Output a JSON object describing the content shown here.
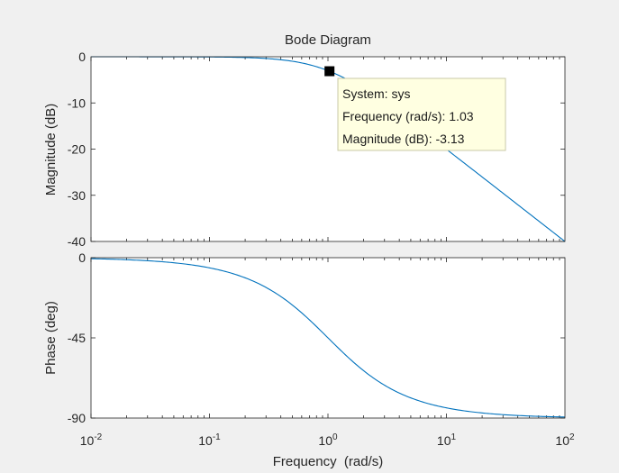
{
  "chart_data": {
    "type": "line",
    "title": "Bode Diagram",
    "xlabel": "Frequency  (rad/s)",
    "x_scale": "log",
    "xlim": [
      0.01,
      100
    ],
    "x_tick_values": [
      0.01,
      0.1,
      1,
      10,
      100
    ],
    "x_tick_labels": [
      {
        "base": "10",
        "exp": "-2"
      },
      {
        "base": "10",
        "exp": "-1"
      },
      {
        "base": "10",
        "exp": "0"
      },
      {
        "base": "10",
        "exp": "1"
      },
      {
        "base": "10",
        "exp": "2"
      }
    ],
    "system": "first-order low-pass, corner 1 rad/s",
    "subplots": [
      {
        "name": "magnitude",
        "ylabel": "Magnitude (dB)",
        "ylim": [
          -40,
          0
        ],
        "y_ticks": [
          0,
          -10,
          -20,
          -30,
          -40
        ],
        "y_tick_labels": [
          "0",
          "-10",
          "-20",
          "-30",
          "-40"
        ],
        "series": [
          {
            "name": "sys",
            "x": [
              0.01,
              0.1,
              0.3,
              0.5,
              1,
              2,
              5,
              10,
              30,
              100
            ],
            "y": [
              0,
              -0.04,
              -0.37,
              -0.97,
              -3.01,
              -6.99,
              -14.15,
              -20.04,
              -29.54,
              -40
            ]
          }
        ]
      },
      {
        "name": "phase",
        "ylabel": "Phase (deg)",
        "ylim": [
          -90,
          0
        ],
        "y_ticks": [
          0,
          -45,
          -90
        ],
        "y_tick_labels": [
          "0",
          "-45",
          "-90"
        ],
        "series": [
          {
            "name": "sys",
            "x": [
              0.01,
              0.1,
              0.3,
              1,
              3,
              10,
              100
            ],
            "y": [
              -0.57,
              -5.71,
              -16.7,
              -45,
              -71.57,
              -84.29,
              -89.43
            ]
          }
        ]
      }
    ],
    "datatip": {
      "frequency": 1.03,
      "magnitude_db": -3.13,
      "lines": [
        "System: sys",
        "Frequency (rad/s): 1.03",
        "Magnitude (dB): -3.13"
      ]
    },
    "line_color": "#0072bd"
  }
}
